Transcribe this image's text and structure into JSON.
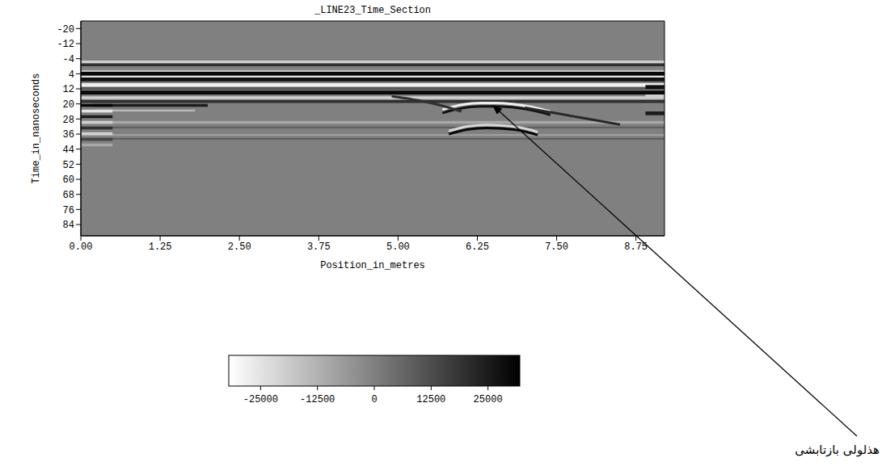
{
  "chart_data": {
    "type": "heatmap",
    "title": "_LINE23_Time_Section",
    "x_label": "Position_in_metres",
    "y_label": "Time_in_nanoseconds",
    "xlim": [
      0,
      9.2
    ],
    "xticks": [
      {
        "value": 0,
        "label": "0.00"
      },
      1.25,
      {
        "value": 2.5,
        "label": "2.50"
      },
      3.75,
      {
        "value": 5,
        "label": "5.00"
      },
      6.25,
      {
        "value": 7.5,
        "label": "7.50"
      },
      8.75
    ],
    "ylim": [
      -24,
      90
    ],
    "yticks": [
      -20,
      -12,
      -4,
      4,
      12,
      20,
      28,
      36,
      44,
      52,
      60,
      68,
      76,
      84
    ],
    "cells": [
      {
        "x": [
          0,
          9.2
        ],
        "t": [
          -24,
          90
        ],
        "value": 0
      },
      {
        "x": [
          0,
          9.2
        ],
        "t": [
          -3,
          -1.5
        ],
        "value": -20000
      },
      {
        "x": [
          0,
          9.2
        ],
        "t": [
          -1.5,
          0
        ],
        "value": 20000
      },
      {
        "x": [
          0,
          9.2
        ],
        "t": [
          2,
          3
        ],
        "value": -15000
      },
      {
        "x": [
          0,
          9.2
        ],
        "t": [
          3,
          5
        ],
        "value": 30000
      },
      {
        "x": [
          0,
          9.2
        ],
        "t": [
          5,
          6
        ],
        "value": -25000
      },
      {
        "x": [
          0,
          9.2
        ],
        "t": [
          6,
          8
        ],
        "value": 28000
      },
      {
        "x": [
          0,
          9.2
        ],
        "t": [
          9,
          11
        ],
        "value": -28000
      },
      {
        "x": [
          0,
          9.2
        ],
        "t": [
          11,
          12.5
        ],
        "value": 10000
      },
      {
        "x": [
          0,
          9.2
        ],
        "t": [
          13,
          15
        ],
        "value": 30000
      },
      {
        "x": [
          0,
          9.2
        ],
        "t": [
          16,
          17.5
        ],
        "value": -20000
      },
      {
        "x": [
          0,
          9.2
        ],
        "t": [
          18,
          19.5
        ],
        "value": 20000
      },
      {
        "x": [
          0,
          9.2
        ],
        "t": [
          29,
          30.5
        ],
        "value": -10000
      },
      {
        "x": [
          0,
          9.2
        ],
        "t": [
          32,
          33
        ],
        "value": 8000
      },
      {
        "x": [
          0,
          9.2
        ],
        "t": [
          36,
          37
        ],
        "value": -8000
      },
      {
        "x": [
          0,
          9.2
        ],
        "t": [
          38,
          39
        ],
        "value": 8000
      },
      {
        "x": [
          0.2,
          2
        ],
        "t": [
          20,
          21.5
        ],
        "value": 25000
      },
      {
        "x": [
          0.2,
          1.8
        ],
        "t": [
          23,
          24
        ],
        "value": -15000
      },
      {
        "x": [
          0,
          0.5
        ],
        "t": [
          20,
          21.5
        ],
        "value": 30000
      },
      {
        "x": [
          0,
          0.5
        ],
        "t": [
          23,
          24.5
        ],
        "value": -25000
      },
      {
        "x": [
          0,
          0.5
        ],
        "t": [
          26,
          27.5
        ],
        "value": 25000
      },
      {
        "x": [
          0,
          0.5
        ],
        "t": [
          29,
          30.5
        ],
        "value": -20000
      },
      {
        "x": [
          0,
          0.5
        ],
        "t": [
          32,
          33.5
        ],
        "value": 20000
      },
      {
        "x": [
          0,
          0.5
        ],
        "t": [
          35,
          36.5
        ],
        "value": -20000
      },
      {
        "x": [
          0,
          0.5
        ],
        "t": [
          38,
          39.5
        ],
        "value": 15000
      },
      {
        "x": [
          0,
          0.5
        ],
        "t": [
          41,
          42.5
        ],
        "value": -10000
      },
      {
        "x": [
          8.9,
          9.2
        ],
        "t": [
          10,
          12
        ],
        "value": 28000
      },
      {
        "x": [
          8.9,
          9.2
        ],
        "t": [
          15,
          17
        ],
        "value": -20000
      },
      {
        "x": [
          8.9,
          9.2
        ],
        "t": [
          24,
          26
        ],
        "value": 25000
      }
    ],
    "reflectors": [
      {
        "x": [
          5.7,
          6.0,
          6.3,
          6.5,
          6.8,
          7.1,
          7.4
        ],
        "t": [
          23,
          20.5,
          19.5,
          19.5,
          20,
          21.5,
          24
        ],
        "value": -28000
      },
      {
        "x": [
          5.7,
          6.0,
          6.3,
          6.5,
          6.8,
          7.1,
          7.4
        ],
        "t": [
          24.8,
          22.3,
          21.3,
          21.3,
          21.8,
          23.3,
          25.8
        ],
        "value": 28000
      },
      {
        "x": [
          5.8,
          6.1,
          6.4,
          6.6,
          6.9,
          7.2
        ],
        "t": [
          34.4,
          31.9,
          31.2,
          31.4,
          32.4,
          34.9
        ],
        "value": -22000
      },
      {
        "x": [
          5.8,
          6.1,
          6.4,
          6.6,
          6.9,
          7.2
        ],
        "t": [
          36,
          33.5,
          32.8,
          33,
          34,
          36.5
        ],
        "value": 30000
      },
      {
        "x": [
          7.0,
          7.5,
          8.0,
          8.5
        ],
        "t": [
          22,
          25,
          28,
          31
        ],
        "value": 22000
      },
      {
        "x": [
          4.9,
          5.3,
          5.7,
          6.0
        ],
        "t": [
          16,
          18,
          21,
          24
        ],
        "value": 20000
      }
    ],
    "color_bar": {
      "range": [
        -32000,
        32000
      ],
      "ticks": [
        -25000,
        -12500,
        0,
        12500,
        25000
      ]
    },
    "annotations": [
      {
        "text": "هذلولی بازتابشی",
        "x": 6.5,
        "y": 21
      }
    ]
  }
}
